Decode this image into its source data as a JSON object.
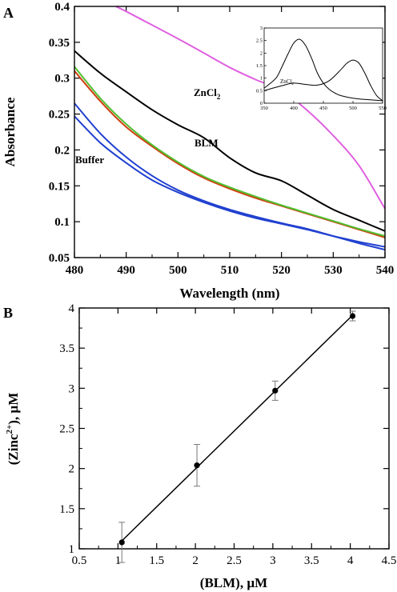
{
  "panel_a": {
    "letter": "A",
    "xlabel": "Wavelength (nm)",
    "ylabel": "Absorbance",
    "xticks": [
      "480",
      "490",
      "500",
      "510",
      "520",
      "530",
      "540"
    ],
    "yticks": [
      "0.05",
      "0.1",
      "0.15",
      "0.2",
      "0.25",
      "0.3",
      "0.35",
      "0.4"
    ],
    "curve_labels": {
      "zncl": "ZnCl",
      "zncl_sub": "2",
      "blm": "BLM",
      "buffer": "Buffer"
    },
    "inset": {
      "xticks": [
        "350",
        "400",
        "450",
        "500",
        "550"
      ],
      "yticks": [
        "0",
        "0.5",
        "1",
        "1.5",
        "2",
        "2.5",
        "3"
      ],
      "label": "ZnCl",
      "label_sub": "2"
    }
  },
  "panel_b": {
    "letter": "B",
    "xlabel": "(BLM), µM",
    "ylabel_pre": "(Zinc",
    "ylabel_sup": "2+",
    "ylabel_post": "), µM",
    "xticks": [
      "0.5",
      "1",
      "1.5",
      "2",
      "2.5",
      "3",
      "3.5",
      "4",
      "4.5"
    ],
    "yticks": [
      "1",
      "1.5",
      "2",
      "2.5",
      "3",
      "3.5",
      "4"
    ]
  },
  "chart_data": [
    {
      "type": "line",
      "panel": "A",
      "xlabel": "Wavelength (nm)",
      "ylabel": "Absorbance",
      "xlim": [
        480,
        540
      ],
      "ylim": [
        0.05,
        0.4
      ],
      "grid": false,
      "x": [
        480,
        485,
        490,
        495,
        500,
        505,
        510,
        515,
        520,
        525,
        530,
        535,
        540
      ],
      "series": [
        {
          "name": "ZnCl2",
          "color": "#e060e0",
          "x": [
            488,
            490,
            495,
            500,
            505,
            510,
            515,
            520,
            525,
            530,
            535,
            540
          ],
          "values": [
            0.4,
            0.393,
            0.374,
            0.355,
            0.335,
            0.315,
            0.298,
            0.283,
            0.255,
            0.22,
            0.178,
            0.118
          ]
        },
        {
          "name": "BLM",
          "color": "#000000",
          "values": [
            0.338,
            0.307,
            0.281,
            0.256,
            0.235,
            0.217,
            0.189,
            0.168,
            0.157,
            0.137,
            0.117,
            0.102,
            0.087
          ]
        },
        {
          "name": "",
          "color": "#d04010",
          "values": [
            0.31,
            0.268,
            0.232,
            0.205,
            0.181,
            0.161,
            0.146,
            0.133,
            0.122,
            0.111,
            0.1,
            0.089,
            0.078
          ]
        },
        {
          "name": "",
          "color": "#50c030",
          "values": [
            0.316,
            0.272,
            0.236,
            0.207,
            0.183,
            0.163,
            0.148,
            0.135,
            0.123,
            0.112,
            0.101,
            0.09,
            0.08
          ]
        },
        {
          "name": "Buffer",
          "color": "#2040d0",
          "values": [
            0.247,
            0.21,
            0.182,
            0.158,
            0.141,
            0.127,
            0.115,
            0.105,
            0.097,
            0.089,
            0.08,
            0.072,
            0.065
          ]
        },
        {
          "name": "",
          "color": "#2040d0",
          "values": [
            0.265,
            0.223,
            0.19,
            0.164,
            0.144,
            0.129,
            0.117,
            0.107,
            0.098,
            0.09,
            0.08,
            0.07,
            0.061
          ]
        }
      ]
    },
    {
      "type": "line",
      "panel": "A-inset",
      "label": "ZnCl2",
      "xlim": [
        350,
        550
      ],
      "ylim": [
        0,
        3
      ],
      "series": [
        {
          "name": "",
          "color": "#000000",
          "x": [
            350,
            370,
            380,
            390,
            400,
            410,
            420,
            430,
            440,
            450,
            460,
            470,
            480,
            500,
            520,
            550
          ],
          "values": [
            0.6,
            1.0,
            1.45,
            1.95,
            2.4,
            2.55,
            2.3,
            1.8,
            1.2,
            0.8,
            0.55,
            0.4,
            0.3,
            0.2,
            0.15,
            0.1
          ]
        },
        {
          "name": "",
          "color": "#000000",
          "x": [
            350,
            380,
            400,
            420,
            440,
            460,
            480,
            490,
            500,
            510,
            520,
            530,
            540,
            550
          ],
          "values": [
            0.5,
            0.7,
            0.8,
            0.75,
            0.72,
            0.9,
            1.35,
            1.6,
            1.72,
            1.6,
            1.2,
            0.7,
            0.3,
            0.1
          ]
        }
      ]
    },
    {
      "type": "scatter",
      "panel": "B",
      "xlabel": "(BLM), µM",
      "ylabel": "(Zinc2+), µM",
      "xlim": [
        0.5,
        4.5
      ],
      "ylim": [
        1,
        4
      ],
      "grid": false,
      "fit_line": true,
      "series": [
        {
          "name": "",
          "color": "#000000",
          "x": [
            1.05,
            2.02,
            3.03,
            4.03
          ],
          "values": [
            1.08,
            2.04,
            2.97,
            3.9
          ],
          "errors": [
            0.25,
            0.26,
            0.12,
            0.06
          ]
        }
      ]
    }
  ]
}
